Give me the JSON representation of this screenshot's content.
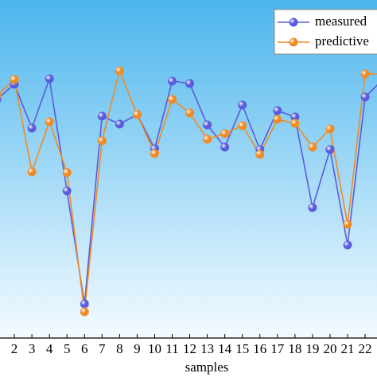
{
  "chart_data": {
    "type": "line",
    "x_label": "samples",
    "categories": [
      null,
      "2",
      "3",
      "4",
      "5",
      "6",
      "7",
      "8",
      "9",
      "10",
      "11",
      "12",
      "13",
      "14",
      "15",
      "16",
      "17",
      "18",
      "19",
      "20",
      "21",
      "22",
      null
    ],
    "series": [
      {
        "name": "measured",
        "color": "#5b5bdc",
        "values": [
          300,
          319,
          264,
          326,
          185,
          43,
          279,
          269,
          281,
          238,
          323,
          320,
          268,
          240,
          293,
          237,
          286,
          278,
          164,
          237,
          117,
          303,
          325
        ]
      },
      {
        "name": "predictive",
        "color": "#f08a24",
        "values": [
          305,
          325,
          209,
          272,
          208,
          33,
          248,
          336,
          281,
          232,
          300,
          283,
          250,
          257,
          267,
          231,
          275,
          270,
          240,
          263,
          143,
          332,
          332
        ]
      }
    ],
    "ylim": [
      0,
      425
    ],
    "legend": "upper right"
  }
}
